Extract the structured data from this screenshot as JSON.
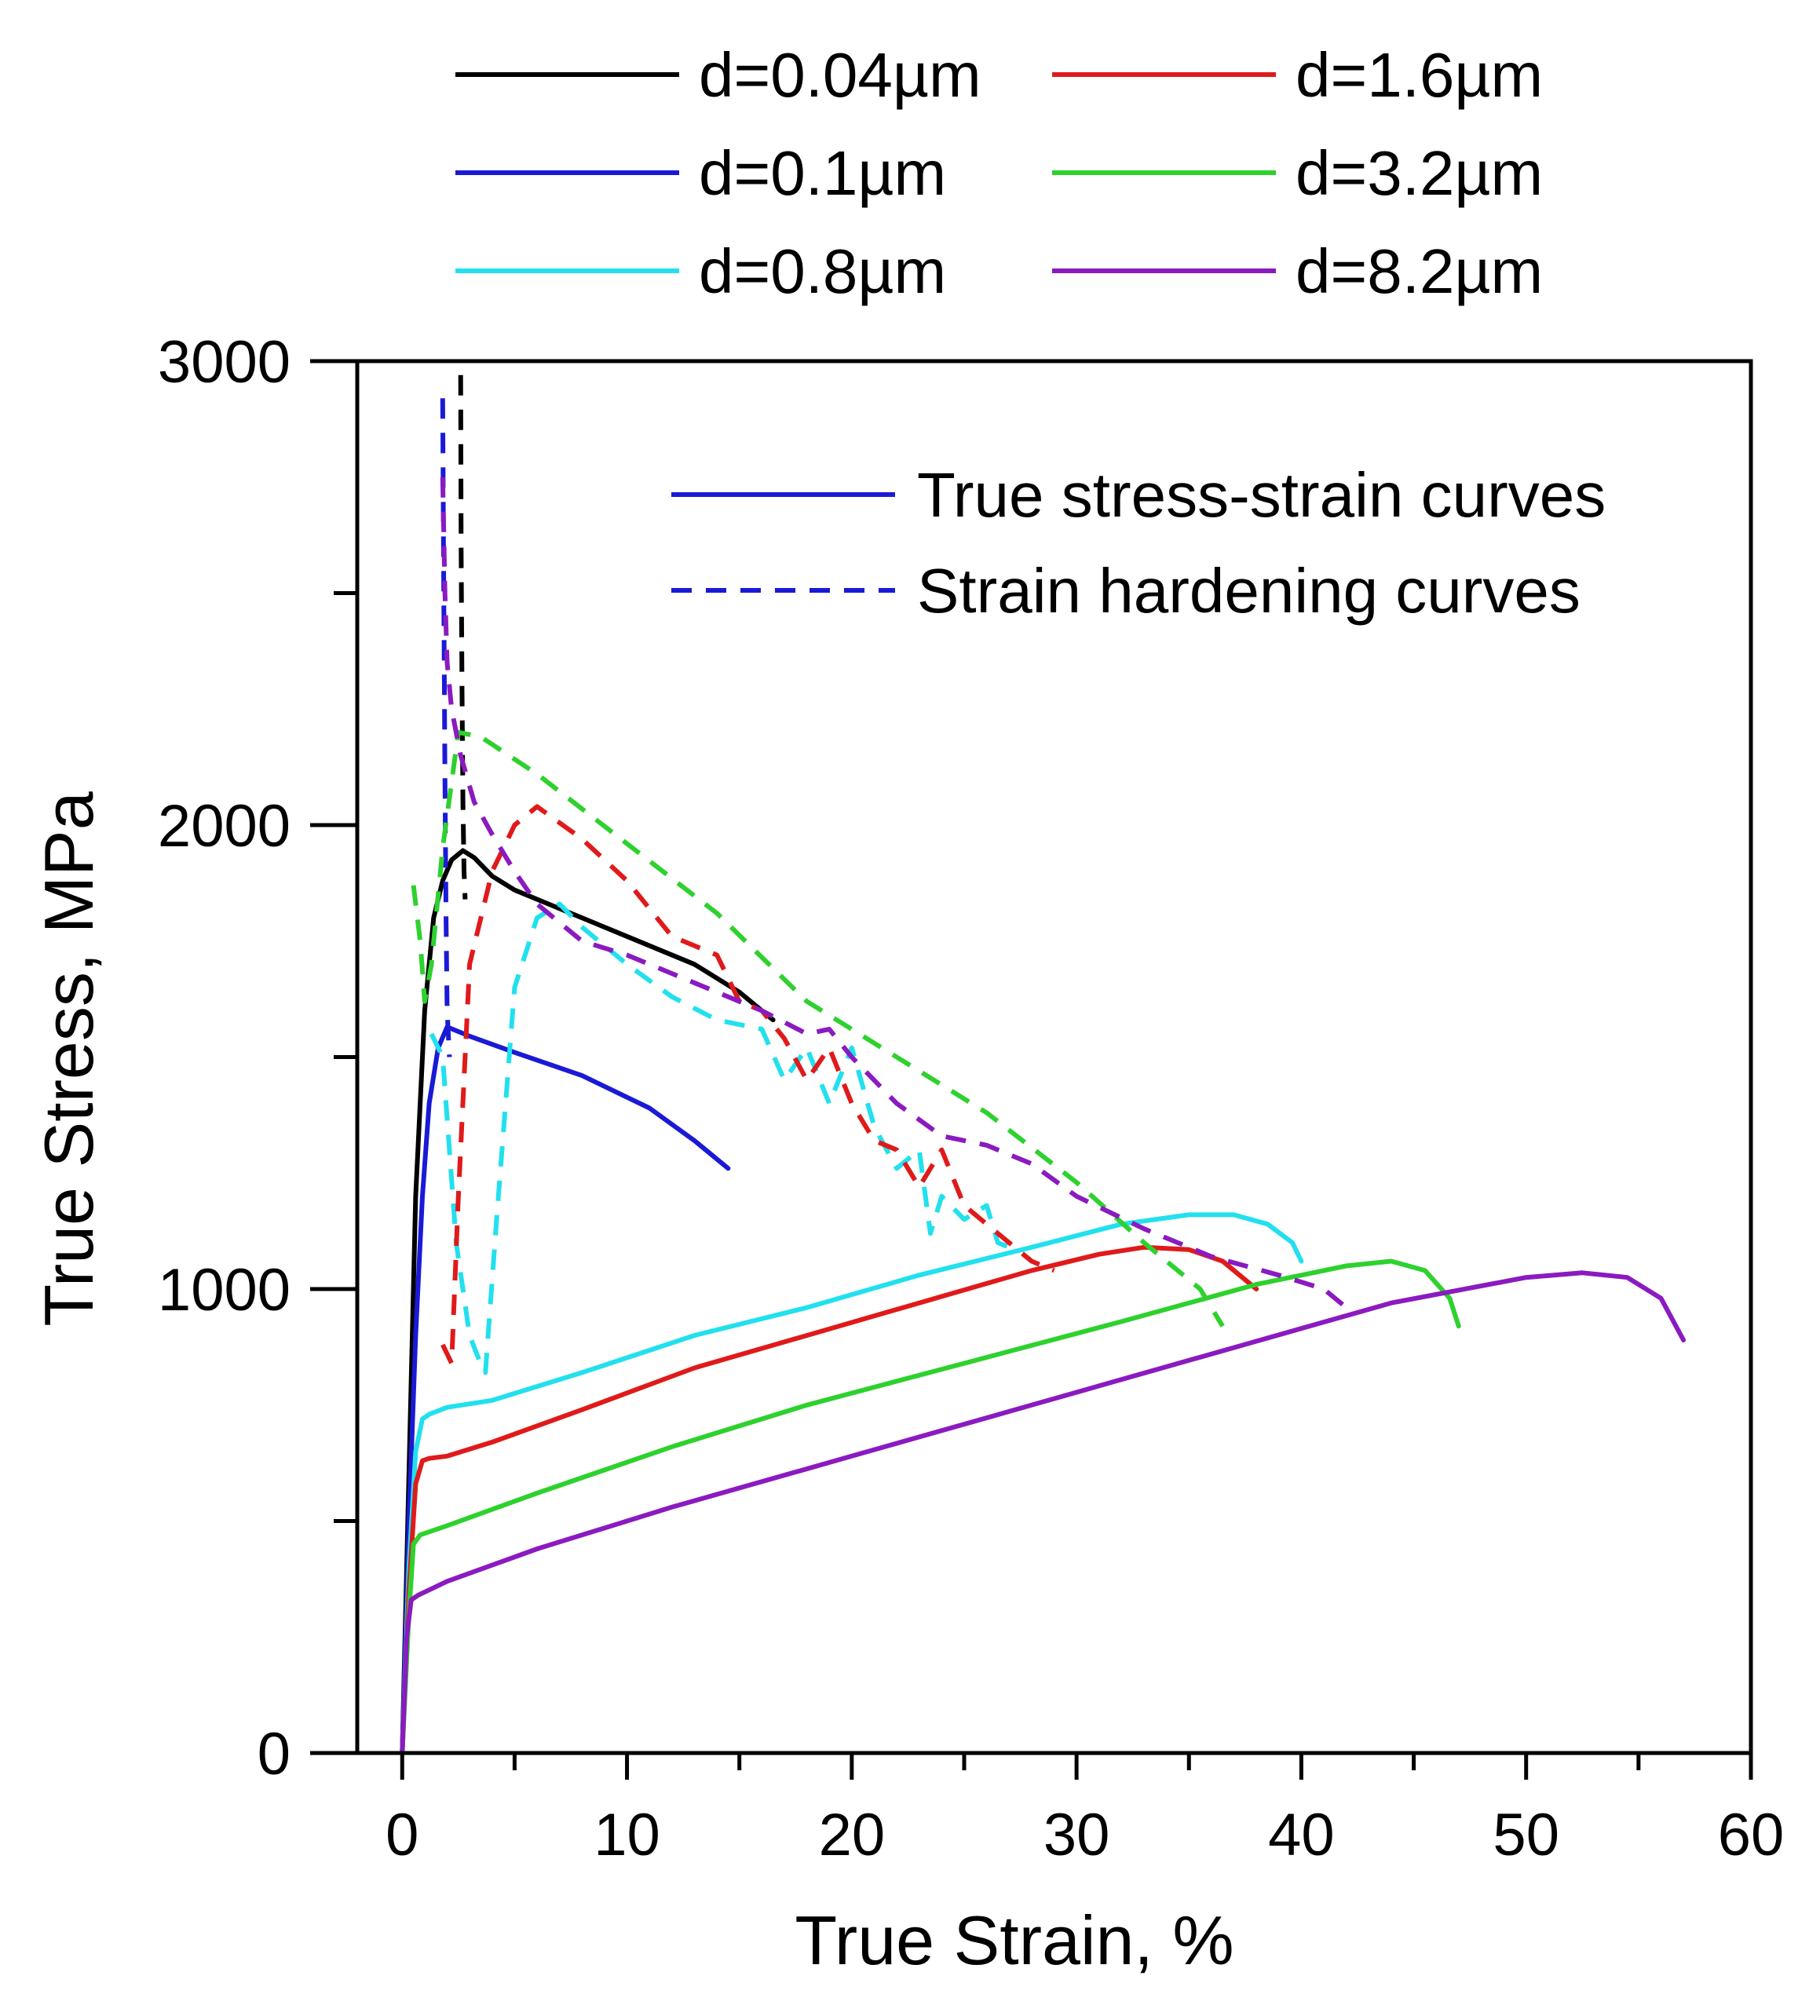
{
  "chart_data": {
    "type": "line",
    "title": "",
    "xlabel": "True Strain, %",
    "ylabel": "True Stress, MPa",
    "xlim": [
      -2,
      60
    ],
    "ylim": [
      0,
      3000
    ],
    "x_ticks": [
      0,
      10,
      20,
      30,
      40,
      50,
      60
    ],
    "y_ticks": [
      0,
      1000,
      2000,
      3000
    ],
    "grid": false,
    "size_legend": [
      {
        "label": "d=0.04µm",
        "color": "#000000"
      },
      {
        "label": "d=0.1µm",
        "color": "#1a1ad6"
      },
      {
        "label": "d=0.8µm",
        "color": "#22e0ee"
      },
      {
        "label": "d=1.6µm",
        "color": "#e01a1a"
      },
      {
        "label": "d=3.2µm",
        "color": "#2ed12e"
      },
      {
        "label": "d=8.2µm",
        "color": "#8b1ac0"
      }
    ],
    "style_legend": [
      {
        "label": "True stress-strain curves",
        "style": "solid",
        "color": "#1a1ad6"
      },
      {
        "label": "Strain hardening curves",
        "style": "dashed",
        "color": "#1a1ad6"
      }
    ],
    "series": [
      {
        "name": "d=0.04µm true stress-strain",
        "style": "solid",
        "color": "#000000",
        "x": [
          0,
          0.3,
          0.6,
          1.0,
          1.4,
          1.8,
          2.2,
          2.7,
          3.2,
          4,
          5,
          7,
          10,
          13,
          15,
          16.5
        ],
        "y": [
          0,
          600,
          1200,
          1600,
          1800,
          1880,
          1925,
          1945,
          1930,
          1890,
          1860,
          1820,
          1760,
          1700,
          1640,
          1580
        ]
      },
      {
        "name": "d=0.1µm true stress-strain",
        "style": "solid",
        "color": "#1a1ad6",
        "x": [
          0,
          0.3,
          0.6,
          0.9,
          1.2,
          1.6,
          2.0,
          3,
          5,
          8,
          11,
          13,
          14.5
        ],
        "y": [
          0,
          500,
          900,
          1200,
          1400,
          1520,
          1565,
          1545,
          1510,
          1460,
          1390,
          1320,
          1260
        ]
      },
      {
        "name": "d=0.8µm true stress-strain",
        "style": "solid",
        "color": "#22e0ee",
        "x": [
          0,
          0.3,
          0.6,
          0.9,
          1.2,
          2,
          4,
          8,
          13,
          18,
          23,
          28,
          32,
          35,
          37,
          38.5,
          39.6,
          40
        ],
        "y": [
          0,
          400,
          650,
          720,
          730,
          745,
          760,
          820,
          900,
          960,
          1030,
          1090,
          1140,
          1160,
          1160,
          1140,
          1100,
          1060
        ]
      },
      {
        "name": "d=1.6µm true stress-strain",
        "style": "solid",
        "color": "#e01a1a",
        "x": [
          0,
          0.3,
          0.6,
          0.9,
          1.2,
          2,
          4,
          8,
          13,
          18,
          23,
          28,
          31,
          33,
          35,
          36.5,
          38
        ],
        "y": [
          0,
          350,
          580,
          630,
          635,
          640,
          670,
          740,
          830,
          900,
          970,
          1040,
          1075,
          1090,
          1085,
          1060,
          1000
        ]
      },
      {
        "name": "d=3.2µm true stress-strain",
        "style": "solid",
        "color": "#2ed12e",
        "x": [
          0,
          0.3,
          0.5,
          0.8,
          2,
          6,
          12,
          18,
          25,
          32,
          38,
          42,
          44,
          45.5,
          46.6,
          47
        ],
        "y": [
          0,
          300,
          450,
          470,
          490,
          560,
          660,
          750,
          840,
          930,
          1010,
          1050,
          1060,
          1040,
          980,
          920
        ]
      },
      {
        "name": "d=8.2µm true stress-strain",
        "style": "solid",
        "color": "#8b1ac0",
        "x": [
          0,
          0.2,
          0.4,
          0.7,
          2,
          6,
          12,
          20,
          28,
          36,
          44,
          50,
          52.5,
          54.5,
          56,
          57
        ],
        "y": [
          0,
          250,
          330,
          340,
          370,
          440,
          530,
          640,
          750,
          860,
          970,
          1025,
          1035,
          1025,
          980,
          890
        ]
      },
      {
        "name": "d=0.04µm strain hardening",
        "style": "dashed",
        "color": "#000000",
        "x": [
          2.6,
          2.62,
          2.66,
          2.7,
          2.75,
          2.8
        ],
        "y": [
          2970,
          2600,
          2300,
          2050,
          1900,
          1840
        ]
      },
      {
        "name": "d=0.1µm strain hardening",
        "style": "dashed",
        "color": "#1a1ad6",
        "x": [
          1.8,
          1.85,
          1.9,
          1.95,
          2.0,
          2.1
        ],
        "y": [
          2920,
          2500,
          2100,
          1800,
          1600,
          1500
        ]
      },
      {
        "name": "d=0.8µm strain hardening",
        "style": "dashed",
        "color": "#22e0ee",
        "x": [
          1.3,
          1.8,
          2.4,
          3.0,
          3.4,
          3.7,
          4.2,
          5,
          6,
          7,
          8,
          10,
          12,
          14,
          16,
          17,
          18,
          19,
          20,
          21,
          22,
          23,
          23.5,
          24,
          25,
          26,
          26.5,
          27
        ],
        "y": [
          1550,
          1500,
          1100,
          900,
          850,
          820,
          1150,
          1650,
          1800,
          1830,
          1780,
          1700,
          1630,
          1580,
          1560,
          1450,
          1520,
          1400,
          1520,
          1350,
          1260,
          1300,
          1120,
          1200,
          1150,
          1180,
          1100,
          1090
        ]
      },
      {
        "name": "d=1.6µm strain hardening",
        "style": "dashed",
        "color": "#e01a1a",
        "x": [
          1.8,
          2.0,
          2.2,
          2.5,
          3,
          4,
          5,
          6,
          8,
          10,
          12,
          14,
          15,
          16,
          17,
          18,
          19,
          20,
          21,
          22,
          23,
          24,
          25,
          26,
          27,
          28,
          29
        ],
        "y": [
          880,
          860,
          840,
          1200,
          1700,
          1900,
          2000,
          2040,
          1970,
          1880,
          1760,
          1720,
          1620,
          1600,
          1540,
          1450,
          1520,
          1400,
          1320,
          1300,
          1220,
          1300,
          1180,
          1140,
          1100,
          1060,
          1040
        ]
      },
      {
        "name": "d=3.2µm strain hardening",
        "style": "dashed",
        "color": "#2ed12e",
        "x": [
          0.5,
          0.8,
          1.0,
          1.3,
          1.8,
          2.5,
          3.5,
          6,
          10,
          14,
          18,
          22,
          26,
          30,
          33,
          35.5,
          36.5
        ],
        "y": [
          1870,
          1750,
          1620,
          1700,
          1950,
          2200,
          2190,
          2110,
          1960,
          1810,
          1620,
          1500,
          1380,
          1230,
          1100,
          1000,
          920
        ]
      },
      {
        "name": "d=8.2µm strain hardening",
        "style": "dashed",
        "color": "#8b1ac0",
        "x": [
          1.8,
          1.9,
          2.0,
          2.2,
          2.6,
          3.2,
          4,
          5,
          6,
          8,
          10,
          12,
          14,
          16,
          18,
          19,
          20,
          22,
          24,
          26,
          28,
          30,
          33,
          36,
          39,
          41,
          42
        ],
        "y": [
          2750,
          2500,
          2350,
          2250,
          2150,
          2050,
          1980,
          1900,
          1830,
          1750,
          1720,
          1680,
          1640,
          1600,
          1550,
          1560,
          1500,
          1400,
          1330,
          1310,
          1270,
          1200,
          1130,
          1070,
          1030,
          1000,
          960
        ]
      }
    ]
  }
}
